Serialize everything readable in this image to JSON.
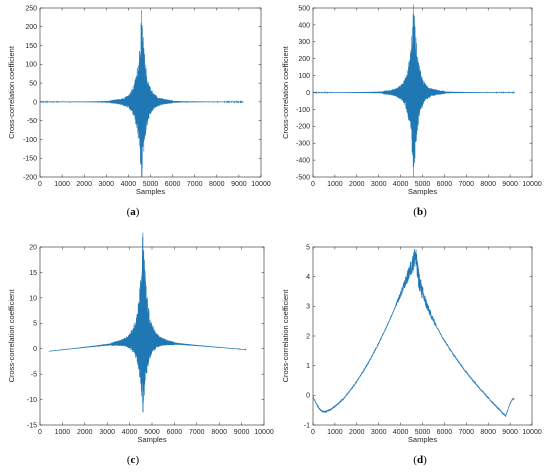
{
  "chart_data": [
    {
      "type": "line",
      "panel_label": "a",
      "xlabel": "Samples",
      "ylabel": "Cross-correlation coefficient",
      "xlim": [
        0,
        10000
      ],
      "ylim": [
        -200,
        250
      ],
      "xticks": [
        0,
        1000,
        2000,
        3000,
        4000,
        5000,
        6000,
        7000,
        8000,
        9000,
        10000
      ],
      "yticks": [
        -200,
        -150,
        -100,
        -50,
        0,
        50,
        100,
        150,
        200,
        250
      ],
      "line_color": "#1f77b4",
      "signal": {
        "x_start": 1,
        "x_end": 9200,
        "center": 4600,
        "peak_max": 205,
        "peak_min": -180,
        "baseline_start": 0,
        "baseline_mid": 0,
        "baseline_end": 0
      }
    },
    {
      "type": "line",
      "panel_label": "b",
      "xlabel": "Samples",
      "ylabel": "Cross-correlation coefficient",
      "xlim": [
        0,
        10000
      ],
      "ylim": [
        -500,
        500
      ],
      "xticks": [
        0,
        1000,
        2000,
        3000,
        4000,
        5000,
        6000,
        7000,
        8000,
        9000,
        10000
      ],
      "yticks": [
        -500,
        -400,
        -300,
        -200,
        -100,
        0,
        100,
        200,
        300,
        400,
        500
      ],
      "line_color": "#1f77b4",
      "signal": {
        "x_start": 1,
        "x_end": 9200,
        "center": 4600,
        "peak_max": 450,
        "peak_min": -430,
        "baseline_start": 0,
        "baseline_mid": 0,
        "baseline_end": 0
      }
    },
    {
      "type": "line",
      "panel_label": "c",
      "xlabel": "Samples",
      "ylabel": "Cross-correlation coefficient",
      "xlim": [
        0,
        10000
      ],
      "ylim": [
        -15,
        20
      ],
      "xticks": [
        0,
        1000,
        2000,
        3000,
        4000,
        5000,
        6000,
        7000,
        8000,
        9000,
        10000
      ],
      "yticks": [
        -15,
        -10,
        -5,
        0,
        5,
        10,
        15,
        20
      ],
      "line_color": "#1f77b4",
      "signal": {
        "x_start": 400,
        "x_end": 9200,
        "center": 4600,
        "peak_max": 19,
        "peak_min": -12.5,
        "baseline_start": -0.5,
        "baseline_mid": 1.5,
        "baseline_end": -0.2
      }
    },
    {
      "type": "line",
      "panel_label": "d",
      "xlabel": "Samples",
      "ylabel": "Cross-correlation coefficient",
      "xlim": [
        0,
        10000
      ],
      "ylim": [
        -1,
        5
      ],
      "xticks": [
        0,
        1000,
        2000,
        3000,
        4000,
        5000,
        6000,
        7000,
        8000,
        9000,
        10000
      ],
      "yticks": [
        -1,
        0,
        1,
        2,
        3,
        4,
        5
      ],
      "line_color": "#1f77b4",
      "signal": {
        "x_start": 1,
        "x_end": 9200,
        "center": 4700,
        "peak_max": 4.75,
        "baseline_start": -0.05,
        "baseline_mid": 2.0,
        "baseline_end": -0.1,
        "dips": [
          {
            "x": 500,
            "y": -0.55
          },
          {
            "x": 8800,
            "y": -0.7
          }
        ]
      }
    }
  ]
}
